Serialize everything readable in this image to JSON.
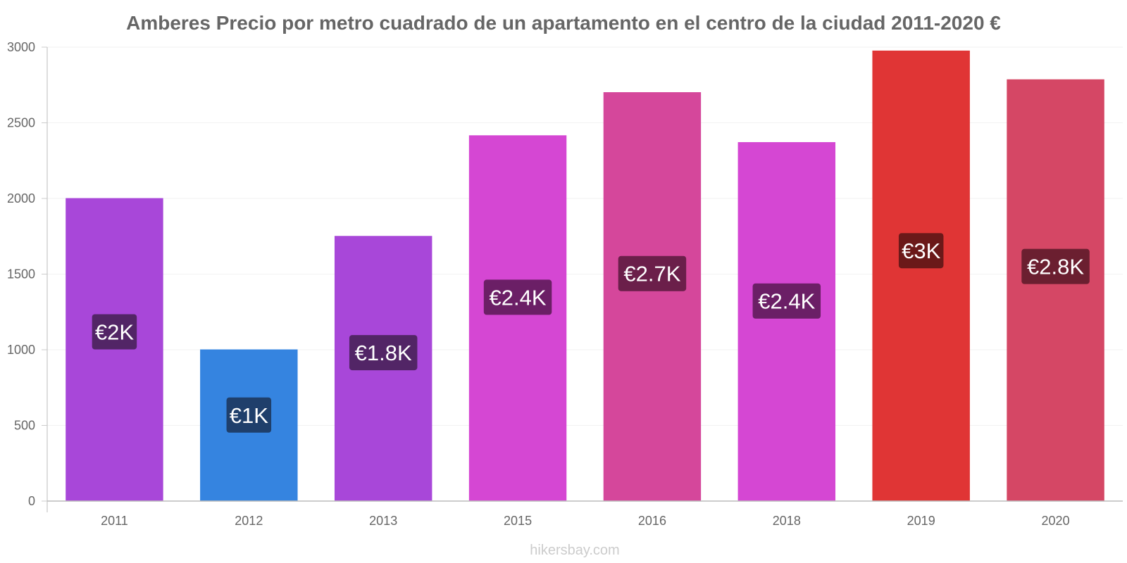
{
  "chart_data": {
    "type": "bar",
    "title": "Amberes Precio por metro cuadrado de un apartamento en el centro de la ciudad 2011-2020 €",
    "xlabel": "",
    "ylabel": "",
    "ylim": [
      0,
      3000
    ],
    "yticks": [
      "0",
      "500",
      "1000",
      "1500",
      "2000",
      "2500",
      "3000"
    ],
    "ytick_values": [
      0,
      500,
      1000,
      1500,
      2000,
      2500,
      3000
    ],
    "grid": true,
    "categories": [
      "2011",
      "2012",
      "2013",
      "2015",
      "2016",
      "2018",
      "2019",
      "2020"
    ],
    "values": [
      2000,
      1000,
      1750,
      2415,
      2700,
      2370,
      2975,
      2785
    ],
    "data_labels": [
      "€2K",
      "€1K",
      "€1.8K",
      "€2.4K",
      "€2.7K",
      "€2.4K",
      "€3K",
      "€2.8K"
    ],
    "bar_colors": [
      "#a847d9",
      "#3584e0",
      "#a847d9",
      "#d547d3",
      "#d5479b",
      "#d547d3",
      "#e03535",
      "#d54765"
    ],
    "label_bg_colors": [
      "#522566",
      "#1f3f6b",
      "#522566",
      "#6b1f66",
      "#6b1f4a",
      "#6b1f66",
      "#6b1919",
      "#6b1f30"
    ]
  },
  "credit": "hikersbay.com"
}
